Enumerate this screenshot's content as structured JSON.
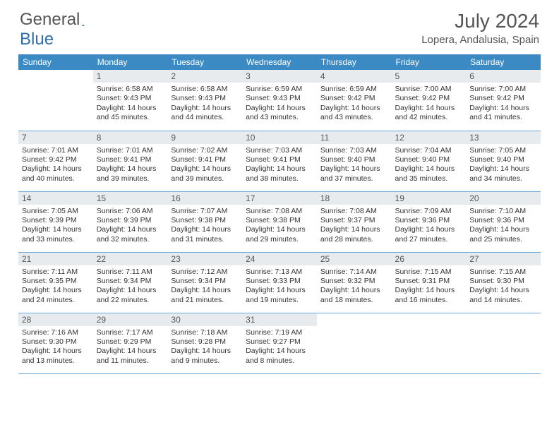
{
  "logo": {
    "part1": "General",
    "part2": "Blue",
    "color": "#2f6fae"
  },
  "title": "July 2024",
  "location": "Lopera, Andalusia, Spain",
  "weekdays": [
    "Sunday",
    "Monday",
    "Tuesday",
    "Wednesday",
    "Thursday",
    "Friday",
    "Saturday"
  ],
  "styling": {
    "header_bg": "#3b8ac4",
    "header_fg": "#ffffff",
    "daynum_bg": "#e8ebee",
    "row_border": "#6fa8d6",
    "text_color": "#333333",
    "title_color": "#555555",
    "body_bg": "#ffffff",
    "font_family": "Arial",
    "cell_fontsize_pt": 8,
    "header_fontsize_pt": 9,
    "title_fontsize_pt": 21
  },
  "start_weekday": 1,
  "days": [
    {
      "n": 1,
      "sunrise": "6:58 AM",
      "sunset": "9:43 PM",
      "daylight": "14 hours and 45 minutes."
    },
    {
      "n": 2,
      "sunrise": "6:58 AM",
      "sunset": "9:43 PM",
      "daylight": "14 hours and 44 minutes."
    },
    {
      "n": 3,
      "sunrise": "6:59 AM",
      "sunset": "9:43 PM",
      "daylight": "14 hours and 43 minutes."
    },
    {
      "n": 4,
      "sunrise": "6:59 AM",
      "sunset": "9:42 PM",
      "daylight": "14 hours and 43 minutes."
    },
    {
      "n": 5,
      "sunrise": "7:00 AM",
      "sunset": "9:42 PM",
      "daylight": "14 hours and 42 minutes."
    },
    {
      "n": 6,
      "sunrise": "7:00 AM",
      "sunset": "9:42 PM",
      "daylight": "14 hours and 41 minutes."
    },
    {
      "n": 7,
      "sunrise": "7:01 AM",
      "sunset": "9:42 PM",
      "daylight": "14 hours and 40 minutes."
    },
    {
      "n": 8,
      "sunrise": "7:01 AM",
      "sunset": "9:41 PM",
      "daylight": "14 hours and 39 minutes."
    },
    {
      "n": 9,
      "sunrise": "7:02 AM",
      "sunset": "9:41 PM",
      "daylight": "14 hours and 39 minutes."
    },
    {
      "n": 10,
      "sunrise": "7:03 AM",
      "sunset": "9:41 PM",
      "daylight": "14 hours and 38 minutes."
    },
    {
      "n": 11,
      "sunrise": "7:03 AM",
      "sunset": "9:40 PM",
      "daylight": "14 hours and 37 minutes."
    },
    {
      "n": 12,
      "sunrise": "7:04 AM",
      "sunset": "9:40 PM",
      "daylight": "14 hours and 35 minutes."
    },
    {
      "n": 13,
      "sunrise": "7:05 AM",
      "sunset": "9:40 PM",
      "daylight": "14 hours and 34 minutes."
    },
    {
      "n": 14,
      "sunrise": "7:05 AM",
      "sunset": "9:39 PM",
      "daylight": "14 hours and 33 minutes."
    },
    {
      "n": 15,
      "sunrise": "7:06 AM",
      "sunset": "9:39 PM",
      "daylight": "14 hours and 32 minutes."
    },
    {
      "n": 16,
      "sunrise": "7:07 AM",
      "sunset": "9:38 PM",
      "daylight": "14 hours and 31 minutes."
    },
    {
      "n": 17,
      "sunrise": "7:08 AM",
      "sunset": "9:38 PM",
      "daylight": "14 hours and 29 minutes."
    },
    {
      "n": 18,
      "sunrise": "7:08 AM",
      "sunset": "9:37 PM",
      "daylight": "14 hours and 28 minutes."
    },
    {
      "n": 19,
      "sunrise": "7:09 AM",
      "sunset": "9:36 PM",
      "daylight": "14 hours and 27 minutes."
    },
    {
      "n": 20,
      "sunrise": "7:10 AM",
      "sunset": "9:36 PM",
      "daylight": "14 hours and 25 minutes."
    },
    {
      "n": 21,
      "sunrise": "7:11 AM",
      "sunset": "9:35 PM",
      "daylight": "14 hours and 24 minutes."
    },
    {
      "n": 22,
      "sunrise": "7:11 AM",
      "sunset": "9:34 PM",
      "daylight": "14 hours and 22 minutes."
    },
    {
      "n": 23,
      "sunrise": "7:12 AM",
      "sunset": "9:34 PM",
      "daylight": "14 hours and 21 minutes."
    },
    {
      "n": 24,
      "sunrise": "7:13 AM",
      "sunset": "9:33 PM",
      "daylight": "14 hours and 19 minutes."
    },
    {
      "n": 25,
      "sunrise": "7:14 AM",
      "sunset": "9:32 PM",
      "daylight": "14 hours and 18 minutes."
    },
    {
      "n": 26,
      "sunrise": "7:15 AM",
      "sunset": "9:31 PM",
      "daylight": "14 hours and 16 minutes."
    },
    {
      "n": 27,
      "sunrise": "7:15 AM",
      "sunset": "9:30 PM",
      "daylight": "14 hours and 14 minutes."
    },
    {
      "n": 28,
      "sunrise": "7:16 AM",
      "sunset": "9:30 PM",
      "daylight": "14 hours and 13 minutes."
    },
    {
      "n": 29,
      "sunrise": "7:17 AM",
      "sunset": "9:29 PM",
      "daylight": "14 hours and 11 minutes."
    },
    {
      "n": 30,
      "sunrise": "7:18 AM",
      "sunset": "9:28 PM",
      "daylight": "14 hours and 9 minutes."
    },
    {
      "n": 31,
      "sunrise": "7:19 AM",
      "sunset": "9:27 PM",
      "daylight": "14 hours and 8 minutes."
    }
  ],
  "labels": {
    "sunrise": "Sunrise",
    "sunset": "Sunset",
    "daylight": "Daylight"
  }
}
